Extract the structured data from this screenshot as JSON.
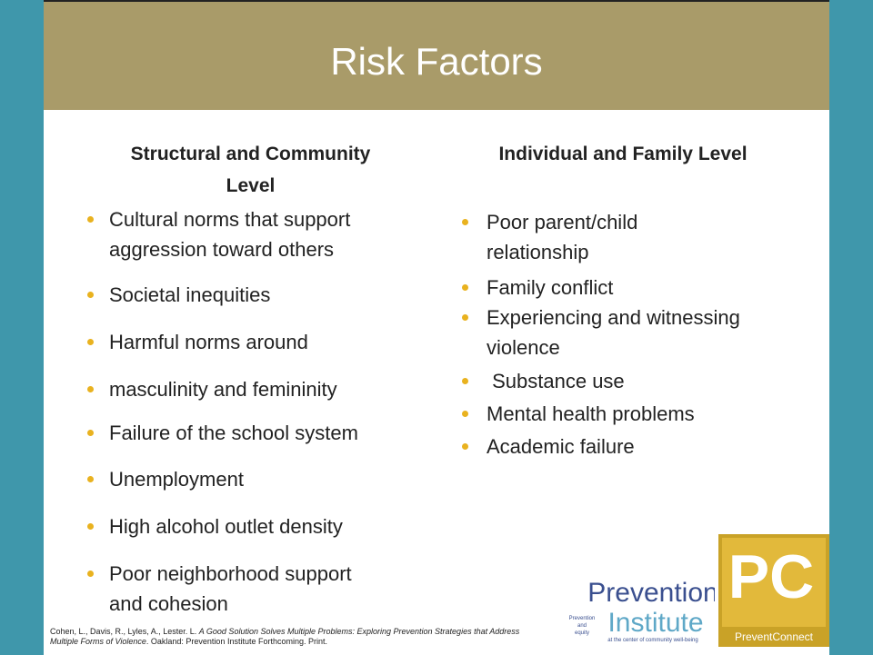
{
  "title": "Risk Factors",
  "left": {
    "heading": [
      "Structural and Community",
      "Level"
    ],
    "items": [
      [
        "Cultural norms that support",
        "aggression toward others"
      ],
      [
        "Societal inequities"
      ],
      [
        "Harmful norms around"
      ],
      [
        "masculinity and femininity"
      ],
      [
        "Failure of the school system"
      ],
      [
        "Unemployment"
      ],
      [
        "High alcohol outlet density"
      ],
      [
        "Poor neighborhood support",
        "and cohesion"
      ]
    ]
  },
  "right": {
    "heading": [
      "Individual and Family Level"
    ],
    "items": [
      [
        "Poor parent/child",
        "relationship"
      ],
      [
        "Family conflict"
      ],
      [
        "Experiencing and witnessing",
        "violence"
      ],
      [
        " Substance use"
      ],
      [
        "Mental health problems"
      ],
      [
        "Academic failure"
      ]
    ]
  },
  "citation": {
    "authors": "Cohen, L., Davis, R., Lyles, A., Lester. L. ",
    "work": "A Good Solution Solves Multiple Problems: Exploring Prevention Strategies that Address Multiple Forms of Violence",
    "publisher": ". Oakland: Prevention Institute Forthcoming. Print."
  },
  "logos": {
    "institute": {
      "name1": "Prevention",
      "name2": "Institute",
      "tag1": "Prevention",
      "tag2": "and",
      "tag3": "equity",
      "tag4": "at the center of community well-being"
    },
    "connect": {
      "mark": "PC",
      "name": "PreventConnect"
    }
  }
}
